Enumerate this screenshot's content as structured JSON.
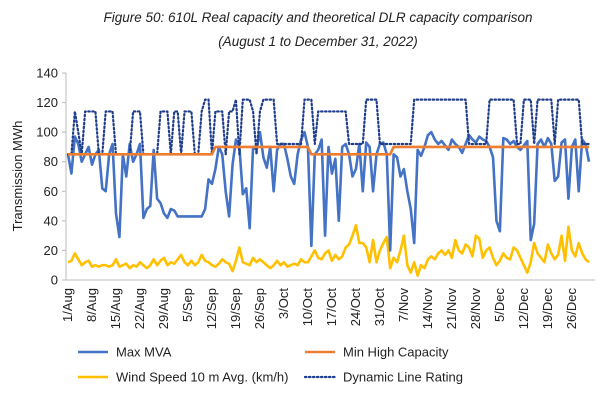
{
  "chart_data": {
    "type": "line",
    "title": "Figure 50: 610L Real capacity and theoretical DLR capacity comparison",
    "subtitle": "(August 1 to December 31, 2022)",
    "y_label": "Transmission MWh",
    "categories": [
      "1/Aug",
      null,
      null,
      null,
      null,
      null,
      null,
      "8/Aug",
      null,
      null,
      null,
      null,
      null,
      null,
      "15/Aug",
      null,
      null,
      null,
      null,
      null,
      null,
      "22/Aug",
      null,
      null,
      null,
      null,
      null,
      null,
      "29/Aug",
      null,
      null,
      null,
      null,
      null,
      null,
      "5/Sep",
      null,
      null,
      null,
      null,
      null,
      null,
      "12/Sep",
      null,
      null,
      null,
      null,
      null,
      null,
      "19/Sep",
      null,
      null,
      null,
      null,
      null,
      null,
      "26/Sep",
      null,
      null,
      null,
      null,
      null,
      null,
      "3/Oct",
      null,
      null,
      null,
      null,
      null,
      null,
      "10/Oct",
      null,
      null,
      null,
      null,
      null,
      null,
      "17/Oct",
      null,
      null,
      null,
      null,
      null,
      null,
      "24/Oct",
      null,
      null,
      null,
      null,
      null,
      null,
      "31/Oct",
      null,
      null,
      null,
      null,
      null,
      null,
      "7/Nov",
      null,
      null,
      null,
      null,
      null,
      null,
      "14/Nov",
      null,
      null,
      null,
      null,
      null,
      null,
      "21/Nov",
      null,
      null,
      null,
      null,
      null,
      null,
      "28/Nov",
      null,
      null,
      null,
      null,
      null,
      null,
      "5/Dec",
      null,
      null,
      null,
      null,
      null,
      null,
      "12/Dec",
      null,
      null,
      null,
      null,
      null,
      null,
      "19/Dec",
      null,
      null,
      null,
      null,
      null,
      null,
      "26/Dec",
      null,
      null,
      null,
      null,
      null
    ],
    "series": [
      {
        "name": "Max MVA",
        "color": "#4472c4",
        "style": "solid",
        "values": [
          85,
          72,
          97,
          92,
          80,
          85,
          90,
          78,
          85,
          88,
          62,
          60,
          85,
          92,
          45,
          29,
          85,
          70,
          92,
          80,
          85,
          92,
          42,
          48,
          50,
          88,
          55,
          52,
          45,
          42,
          48,
          47,
          43,
          43,
          43,
          43,
          43,
          43,
          43,
          43,
          48,
          68,
          65,
          75,
          90,
          85,
          60,
          43,
          78,
          95,
          90,
          58,
          62,
          35,
          90,
          88,
          100,
          83,
          76,
          90,
          60,
          88,
          92,
          92,
          82,
          70,
          65,
          85,
          95,
          100,
          90,
          23,
          85,
          88,
          95,
          30,
          90,
          72,
          82,
          40,
          90,
          92,
          85,
          70,
          75,
          92,
          60,
          93,
          90,
          60,
          85,
          92,
          93,
          85,
          20,
          85,
          83,
          70,
          75,
          60,
          48,
          25,
          88,
          84,
          90,
          98,
          100,
          95,
          92,
          94,
          91,
          88,
          95,
          92,
          90,
          86,
          92,
          98,
          95,
          93,
          97,
          95,
          94,
          90,
          83,
          40,
          33,
          96,
          95,
          92,
          94,
          90,
          88,
          91,
          94,
          27,
          38,
          92,
          95,
          90,
          96,
          92,
          67,
          70,
          93,
          95,
          55,
          90,
          95,
          60,
          95,
          92,
          80
        ]
      },
      {
        "name": "Min High Capacity",
        "color": "#ed7d31",
        "style": "solid",
        "values": [
          85,
          85,
          85,
          85,
          85,
          85,
          85,
          85,
          85,
          85,
          85,
          85,
          85,
          85,
          85,
          85,
          85,
          85,
          85,
          85,
          85,
          85,
          85,
          85,
          85,
          85,
          85,
          85,
          85,
          85,
          85,
          85,
          85,
          85,
          85,
          85,
          85,
          85,
          85,
          85,
          85,
          85,
          85,
          90,
          90,
          90,
          90,
          90,
          90,
          90,
          90,
          90,
          90,
          90,
          90,
          90,
          90,
          90,
          90,
          90,
          90,
          90,
          90,
          90,
          90,
          90,
          90,
          90,
          90,
          90,
          90,
          85,
          85,
          85,
          85,
          85,
          85,
          85,
          85,
          85,
          85,
          85,
          85,
          85,
          85,
          85,
          85,
          85,
          85,
          85,
          85,
          85,
          85,
          85,
          85,
          90,
          90,
          90,
          90,
          90,
          90,
          90,
          90,
          90,
          90,
          90,
          90,
          90,
          90,
          90,
          90,
          90,
          90,
          90,
          90,
          90,
          90,
          90,
          90,
          90,
          90,
          90,
          90,
          90,
          90,
          90,
          90,
          90,
          90,
          90,
          90,
          90,
          90,
          90,
          90,
          90,
          90,
          90,
          90,
          90,
          90,
          90,
          90,
          90,
          90,
          90,
          90,
          90,
          90,
          90,
          90,
          90,
          90
        ]
      },
      {
        "name": "Wind Speed 10 m Avg. (km/h)",
        "color": "#ffc000",
        "style": "solid",
        "values": [
          12,
          13,
          18,
          14,
          10,
          12,
          13,
          9,
          10,
          9,
          10,
          10,
          9,
          10,
          14,
          9,
          10,
          11,
          8,
          10,
          9,
          12,
          10,
          8,
          10,
          14,
          10,
          13,
          15,
          10,
          12,
          11,
          14,
          17,
          12,
          10,
          13,
          10,
          12,
          17,
          13,
          12,
          10,
          9,
          11,
          14,
          12,
          11,
          6,
          13,
          22,
          12,
          11,
          10,
          15,
          12,
          14,
          12,
          10,
          8,
          10,
          13,
          10,
          12,
          9,
          10,
          11,
          10,
          14,
          12,
          12,
          16,
          20,
          15,
          14,
          18,
          20,
          13,
          17,
          14,
          16,
          22,
          24,
          30,
          37,
          25,
          25,
          22,
          12,
          27,
          12,
          20,
          25,
          29,
          8,
          15,
          12,
          20,
          30,
          10,
          5,
          12,
          3,
          10,
          8,
          14,
          16,
          14,
          18,
          20,
          17,
          20,
          15,
          27,
          20,
          18,
          24,
          22,
          16,
          30,
          28,
          15,
          20,
          22,
          15,
          10,
          13,
          18,
          15,
          14,
          22,
          20,
          15,
          10,
          5,
          12,
          25,
          18,
          15,
          12,
          24,
          18,
          14,
          17,
          30,
          13,
          36,
          20,
          16,
          25,
          18,
          14,
          12
        ]
      },
      {
        "name": "Dynamic Line Rating",
        "color": "#1f3d8a",
        "style": "dotted",
        "values": [
          85,
          85,
          114,
          100,
          85,
          114,
          114,
          114,
          114,
          85,
          85,
          114,
          114,
          114,
          85,
          85,
          85,
          85,
          85,
          114,
          114,
          114,
          85,
          85,
          85,
          85,
          85,
          114,
          114,
          114,
          85,
          114,
          114,
          85,
          114,
          114,
          114,
          85,
          85,
          114,
          122,
          122,
          85,
          114,
          114,
          114,
          85,
          114,
          114,
          122,
          85,
          122,
          122,
          122,
          114,
          85,
          114,
          122,
          122,
          122,
          122,
          92,
          92,
          92,
          92,
          92,
          92,
          92,
          92,
          122,
          122,
          122,
          92,
          114,
          114,
          114,
          114,
          114,
          114,
          114,
          114,
          114,
          92,
          92,
          92,
          92,
          92,
          122,
          122,
          122,
          122,
          92,
          92,
          92,
          92,
          92,
          92,
          92,
          92,
          92,
          92,
          122,
          122,
          122,
          122,
          122,
          122,
          122,
          122,
          122,
          122,
          122,
          122,
          122,
          122,
          122,
          122,
          92,
          92,
          92,
          92,
          92,
          92,
          122,
          122,
          122,
          122,
          122,
          122,
          122,
          122,
          92,
          92,
          122,
          122,
          122,
          92,
          122,
          122,
          122,
          122,
          122,
          92,
          122,
          122,
          122,
          122,
          122,
          122,
          122,
          92,
          92,
          92
        ]
      }
    ],
    "ylim": [
      0,
      140
    ],
    "yticks": [
      0,
      20,
      40,
      60,
      80,
      100,
      120,
      140
    ],
    "grid": false,
    "legend": "bottom"
  }
}
